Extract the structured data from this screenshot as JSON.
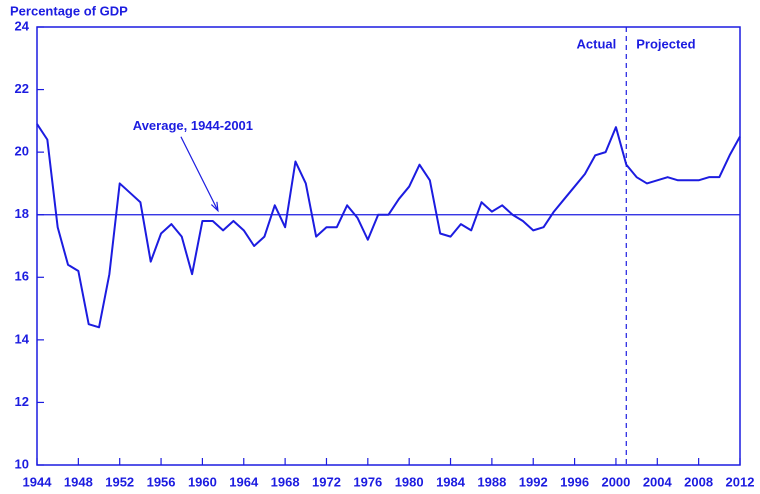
{
  "chart_data": {
    "type": "line",
    "y_axis_label": "Percentage of GDP",
    "x": [
      1944,
      1945,
      1946,
      1947,
      1948,
      1949,
      1950,
      1951,
      1952,
      1953,
      1954,
      1955,
      1956,
      1957,
      1958,
      1959,
      1960,
      1961,
      1962,
      1963,
      1964,
      1965,
      1966,
      1967,
      1968,
      1969,
      1970,
      1971,
      1972,
      1973,
      1974,
      1975,
      1976,
      1977,
      1978,
      1979,
      1980,
      1981,
      1982,
      1983,
      1984,
      1985,
      1986,
      1987,
      1988,
      1989,
      1990,
      1991,
      1992,
      1993,
      1994,
      1995,
      1996,
      1997,
      1998,
      1999,
      2000,
      2001,
      2002,
      2003,
      2004,
      2005,
      2006,
      2007,
      2008,
      2009,
      2010,
      2011,
      2012
    ],
    "values": [
      20.9,
      20.4,
      17.6,
      16.4,
      16.2,
      14.5,
      14.4,
      16.1,
      19.0,
      18.7,
      18.4,
      16.5,
      17.4,
      17.7,
      17.3,
      16.1,
      17.8,
      17.8,
      17.5,
      17.8,
      17.5,
      17.0,
      17.3,
      18.3,
      17.6,
      19.7,
      19.0,
      17.3,
      17.6,
      17.6,
      18.3,
      17.9,
      17.2,
      18.0,
      18.0,
      18.5,
      18.9,
      19.6,
      19.1,
      17.4,
      17.3,
      17.7,
      17.5,
      18.4,
      18.1,
      18.3,
      18.0,
      17.8,
      17.5,
      17.6,
      18.1,
      18.5,
      18.9,
      19.3,
      19.9,
      20.0,
      20.8,
      19.6,
      19.2,
      19.0,
      19.1,
      19.2,
      19.1,
      19.1,
      19.1,
      19.2,
      19.2,
      19.9,
      20.5
    ],
    "color": "#1c1ce0",
    "xlim": [
      1944,
      2012
    ],
    "xticks": [
      1944,
      1948,
      1952,
      1956,
      1960,
      1964,
      1968,
      1972,
      1976,
      1980,
      1984,
      1988,
      1992,
      1996,
      2000,
      2004,
      2008,
      2012
    ],
    "ylim": [
      10,
      24
    ],
    "yticks": [
      10,
      12,
      14,
      16,
      18,
      20,
      22,
      24
    ],
    "average": 18,
    "average_label": "Average, 1944-2001",
    "average_arrow_x": 1961.5,
    "divider_x": 2001,
    "left_label": "Actual",
    "right_label": "Projected"
  }
}
